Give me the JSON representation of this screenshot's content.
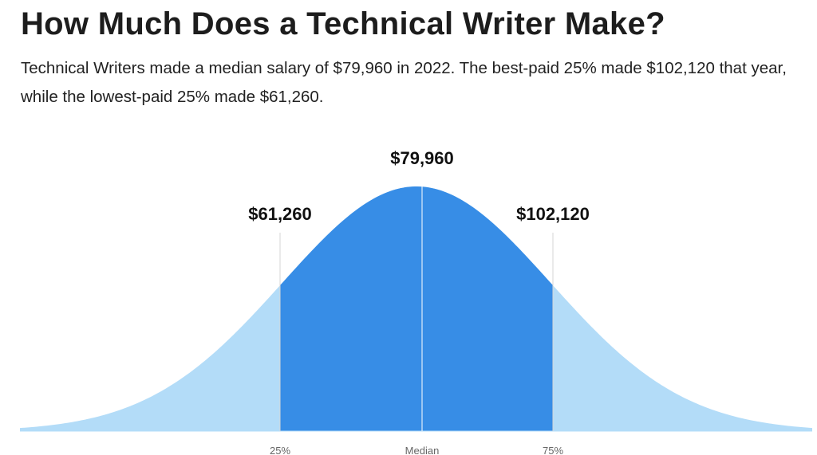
{
  "header": {
    "title": "How Much Does a Technical Writer Make?",
    "description": "Technical Writers made a median salary of $79,960 in 2022. The best-paid 25% made $102,120 that year, while the lowest-paid 25% made $61,260."
  },
  "markers": [
    {
      "value": "$61,260",
      "label": "25%"
    },
    {
      "value": "$79,960",
      "label": "Median"
    },
    {
      "value": "$102,120",
      "label": "75%"
    }
  ]
}
